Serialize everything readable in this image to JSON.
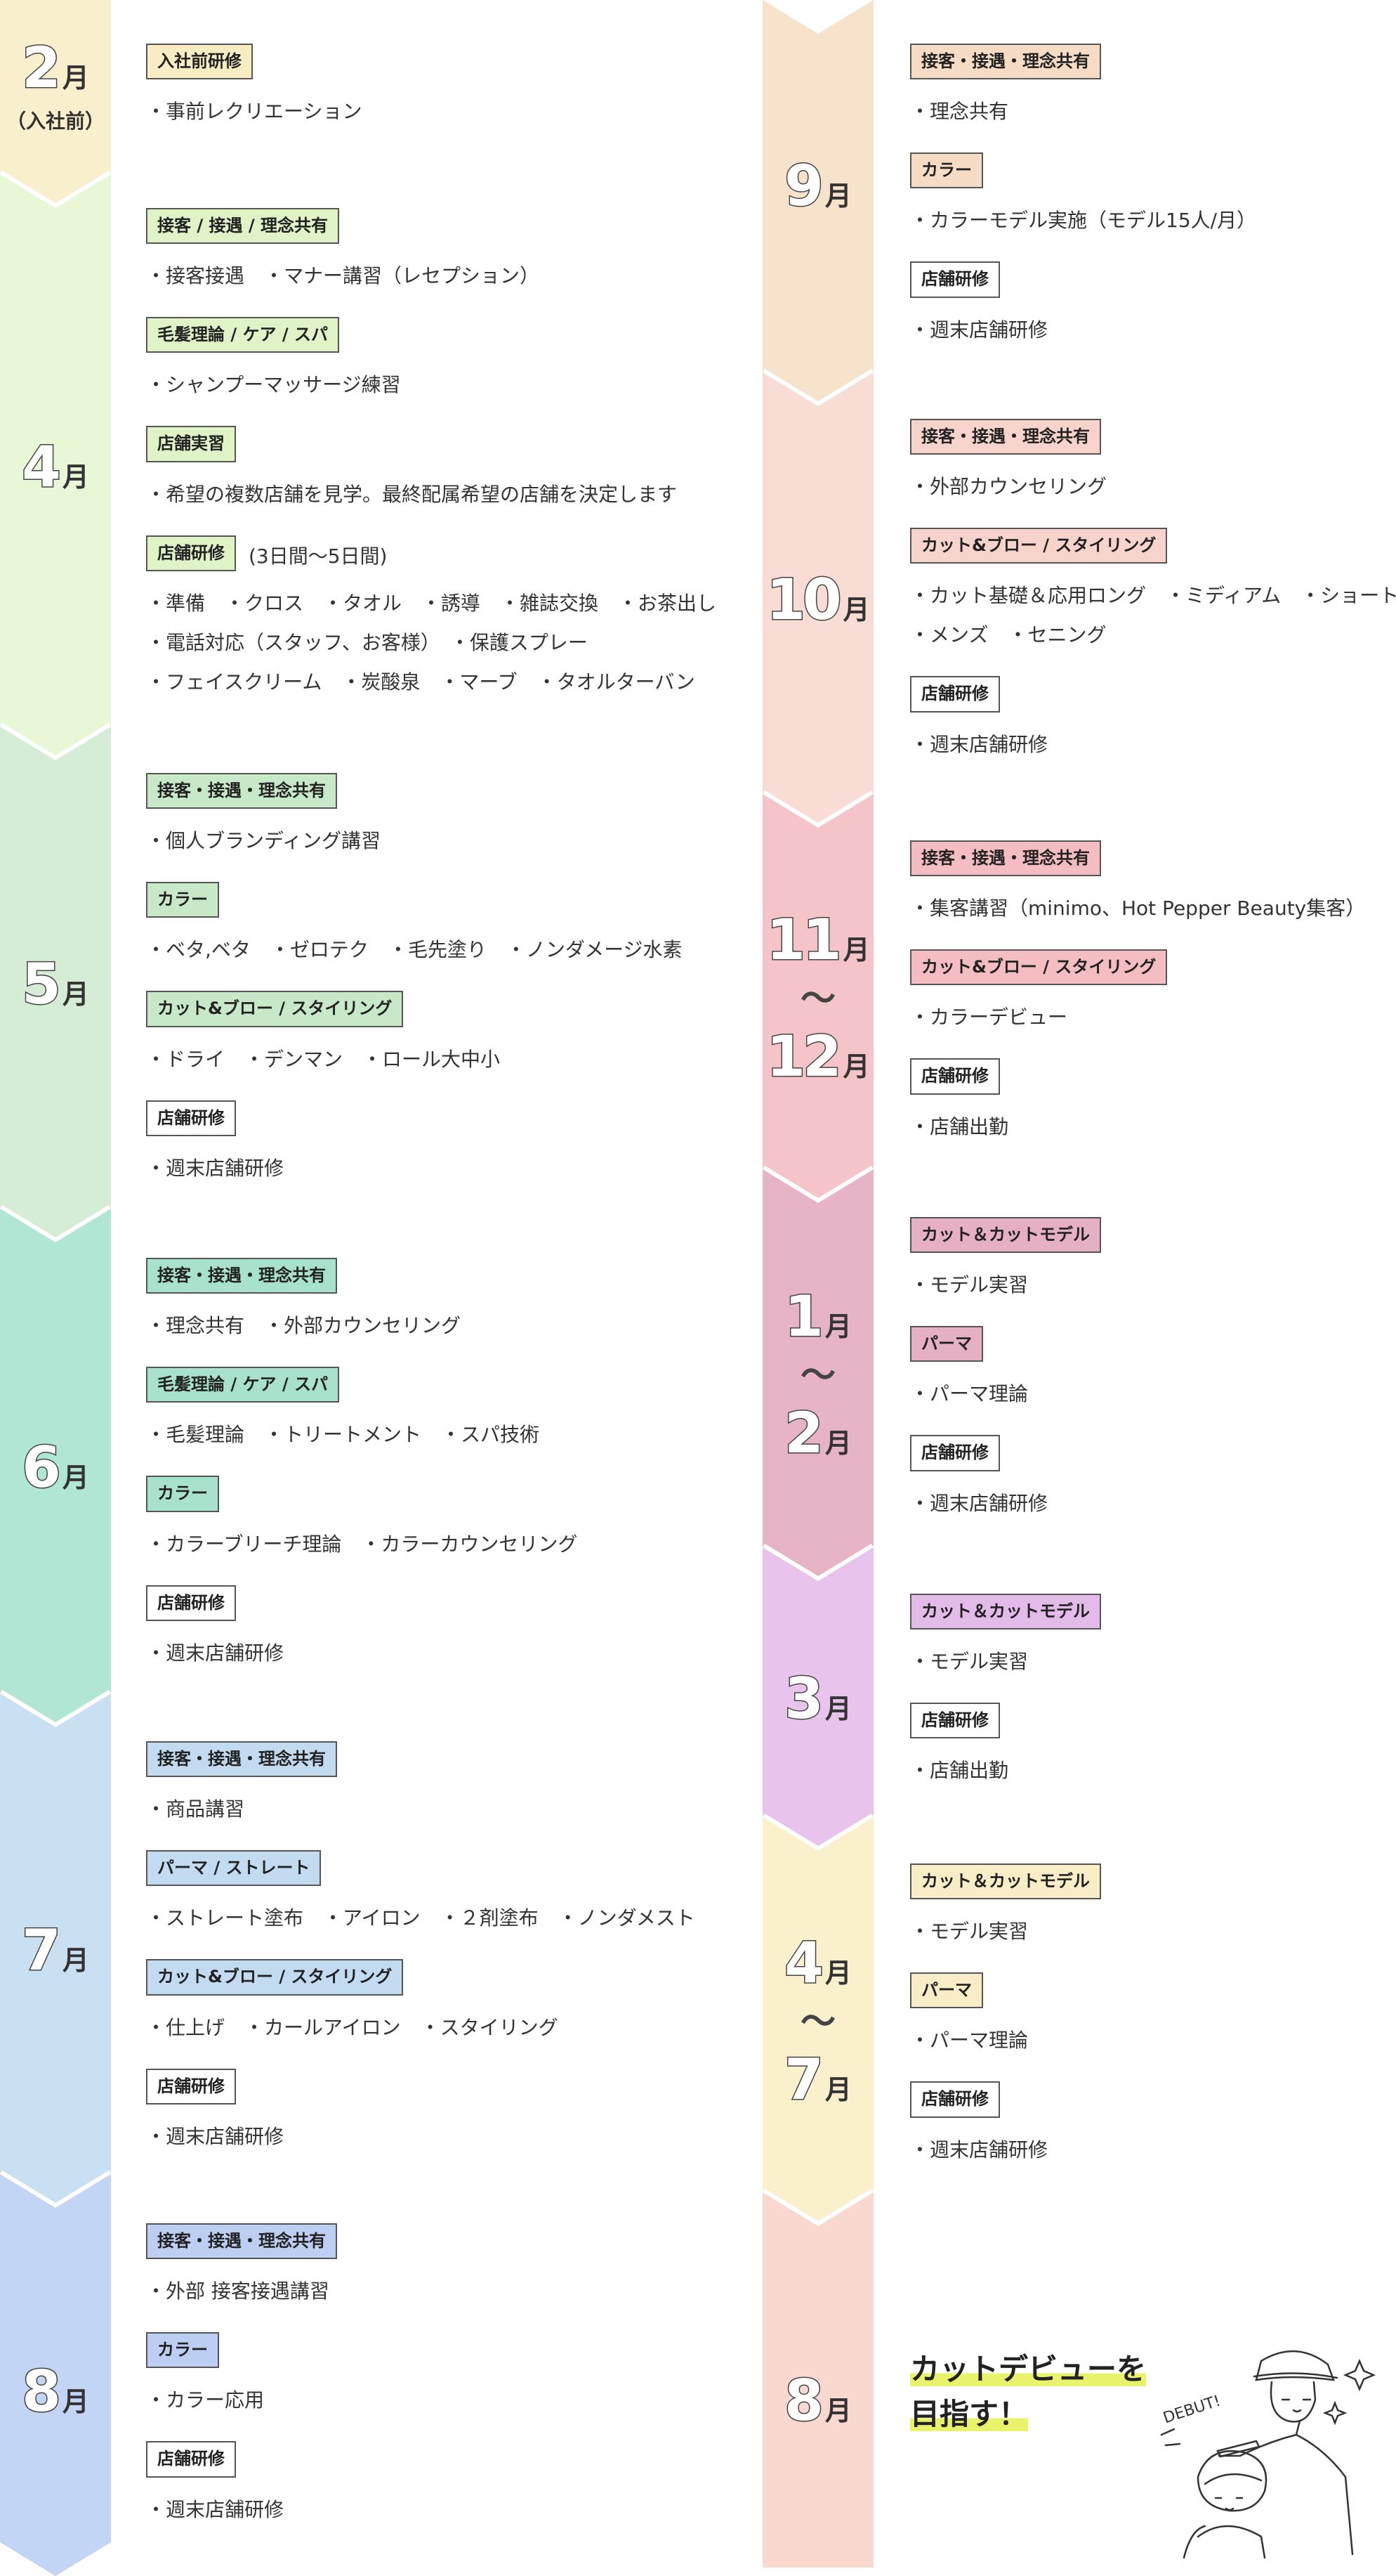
{
  "left": [
    {
      "month": "2",
      "unit": "月",
      "sub": "（入社前）",
      "color": "#f9efcc",
      "tag": "#f7ecc2",
      "items": [
        {
          "tag": "入社前研修",
          "lines": [
            "・事前レクリエーション"
          ]
        }
      ]
    },
    {
      "month": "4",
      "unit": "月",
      "color": "#e8f7d5",
      "tag": "#dff3c6",
      "items": [
        {
          "tag": "接客 / 接遇 / 理念共有",
          "lines": [
            "・接客接遇　・マナー講習（レセプション）"
          ]
        },
        {
          "tag": "毛髪理論 / ケア / スパ",
          "lines": [
            "・シャンプーマッサージ練習"
          ]
        },
        {
          "tag": "店舗実習",
          "lines": [
            "・希望の複数店舗を見学。最終配属希望の店舗を決定します"
          ]
        },
        {
          "tag": "店舗研修",
          "extra": "(3日間〜5日間)",
          "lines": [
            "・準備　・クロス　・タオル　・誘導　・雑誌交換　・お茶出し",
            "・電話対応（スタッフ、お客様）　・保護スプレー",
            "・フェイスクリーム　・炭酸泉　・マーブ　・タオルターバン"
          ]
        }
      ]
    },
    {
      "month": "5",
      "unit": "月",
      "color": "#d4edd4",
      "tag": "#c8e9c8",
      "items": [
        {
          "tag": "接客・接遇・理念共有",
          "lines": [
            "・個人ブランディング講習"
          ]
        },
        {
          "tag": "カラー",
          "lines": [
            "・ベタ,ベタ　・ゼロテク　・毛先塗り　・ノンダメージ水素"
          ]
        },
        {
          "tag": "カット&ブロー / スタイリング",
          "lines": [
            "・ドライ　・デンマン　・ロール大中小"
          ]
        },
        {
          "tag": "店舗研修",
          "plain": true,
          "lines": [
            "・週末店舗研修"
          ]
        }
      ]
    },
    {
      "month": "6",
      "unit": "月",
      "color": "#b2e6d4",
      "tag": "#a8e2cd",
      "items": [
        {
          "tag": "接客・接遇・理念共有",
          "lines": [
            "・理念共有　・外部カウンセリング"
          ]
        },
        {
          "tag": "毛髪理論 / ケア / スパ",
          "lines": [
            "・毛髪理論　・トリートメント　・スパ技術"
          ]
        },
        {
          "tag": "カラー",
          "lines": [
            "・カラーブリーチ理論　・カラーカウンセリング"
          ]
        },
        {
          "tag": "店舗研修",
          "plain": true,
          "lines": [
            "・週末店舗研修"
          ]
        }
      ]
    },
    {
      "month": "7",
      "unit": "月",
      "color": "#c9e0f3",
      "tag": "#c2dbf1",
      "items": [
        {
          "tag": "接客・接遇・理念共有",
          "lines": [
            "・商品講習"
          ]
        },
        {
          "tag": "パーマ / ストレート",
          "lines": [
            "・ストレート塗布　・アイロン　・２剤塗布　・ノンダメスト"
          ]
        },
        {
          "tag": "カット&ブロー / スタイリング",
          "lines": [
            "・仕上げ　・カールアイロン　・スタイリング"
          ]
        },
        {
          "tag": "店舗研修",
          "plain": true,
          "lines": [
            "・週末店舗研修"
          ]
        }
      ]
    },
    {
      "month": "8",
      "unit": "月",
      "color": "#c3d5f5",
      "tag": "#bccff2",
      "items": [
        {
          "tag": "接客・接遇・理念共有",
          "lines": [
            "・外部 接客接遇講習"
          ]
        },
        {
          "tag": "カラー",
          "lines": [
            "・カラー応用"
          ]
        },
        {
          "tag": "店舗研修",
          "plain": true,
          "lines": [
            "・週末店舗研修"
          ]
        }
      ]
    }
  ],
  "right": [
    {
      "month": "9",
      "unit": "月",
      "color": "#f7e2cc",
      "tag": "#f6dcc4",
      "items": [
        {
          "tag": "接客・接遇・理念共有",
          "lines": [
            "・理念共有"
          ]
        },
        {
          "tag": "カラー",
          "lines": [
            "・カラーモデル実施（モデル15人/月）"
          ]
        },
        {
          "tag": "店舗研修",
          "plain": true,
          "lines": [
            "・週末店舗研修"
          ]
        }
      ]
    },
    {
      "month": "10",
      "unit": "月",
      "color": "#f9dcd4",
      "tag": "#f7d4cb",
      "items": [
        {
          "tag": "接客・接遇・理念共有",
          "lines": [
            "・外部カウンセリング"
          ]
        },
        {
          "tag": "カット&ブロー / スタイリング",
          "lines": [
            "・カット基礎＆応用ロング　・ミディアム　・ショート",
            "・メンズ　・セニング"
          ]
        },
        {
          "tag": "店舗研修",
          "plain": true,
          "lines": [
            "・週末店舗研修"
          ]
        }
      ]
    },
    {
      "month": "11",
      "unit": "月",
      "month2": "12",
      "unit2": "月",
      "tilde": "～",
      "color": "#f5c4c8",
      "tag": "#f3bdc1",
      "items": [
        {
          "tag": "接客・接遇・理念共有",
          "lines": [
            "・集客講習（minimo、Hot Pepper Beauty集客）"
          ]
        },
        {
          "tag": "カット&ブロー / スタイリング",
          "lines": [
            "・カラーデビュー"
          ]
        },
        {
          "tag": "店舗研修",
          "plain": true,
          "lines": [
            "・店舗出勤"
          ]
        }
      ]
    },
    {
      "month": "1",
      "unit": "月",
      "month2": "2",
      "unit2": "月",
      "tilde": "～",
      "color": "#e7b3c6",
      "tag": "#e6b0c4",
      "items": [
        {
          "tag": "カット＆カットモデル",
          "lines": [
            "・モデル実習"
          ]
        },
        {
          "tag": "パーマ",
          "lines": [
            "・パーマ理論"
          ]
        },
        {
          "tag": "店舗研修",
          "plain": true,
          "lines": [
            "・週末店舗研修"
          ]
        }
      ]
    },
    {
      "month": "3",
      "unit": "月",
      "color": "#e8c4ec",
      "tag": "#e3bbe9",
      "items": [
        {
          "tag": "カット＆カットモデル",
          "lines": [
            "・モデル実習"
          ]
        },
        {
          "tag": "店舗研修",
          "plain": true,
          "lines": [
            "・店舗出勤"
          ]
        }
      ]
    },
    {
      "month": "4",
      "unit": "月",
      "month2": "7",
      "unit2": "月",
      "tilde": "～",
      "color": "#faf0cc",
      "tag": "#f8edc6",
      "items": [
        {
          "tag": "カット＆カットモデル",
          "lines": [
            "・モデル実習"
          ]
        },
        {
          "tag": "パーマ",
          "lines": [
            "・パーマ理論"
          ]
        },
        {
          "tag": "店舗研修",
          "plain": true,
          "lines": [
            "・週末店舗研修"
          ]
        }
      ]
    },
    {
      "month": "8",
      "unit": "月",
      "color": "#f9d8d0",
      "goal": [
        "カットデビューを",
        "目指す！"
      ],
      "illus_text": "DEBUT!"
    }
  ]
}
